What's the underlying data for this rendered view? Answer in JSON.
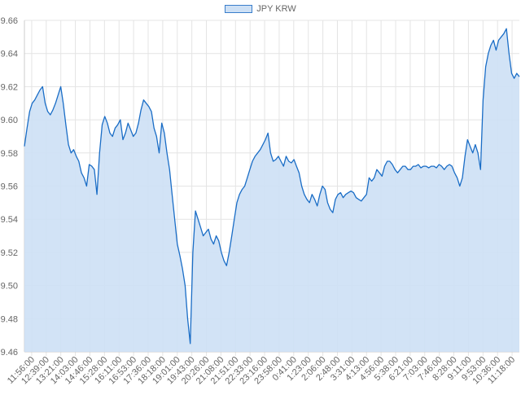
{
  "chart_data": {
    "type": "area",
    "title": "",
    "xlabel": "",
    "ylabel": "",
    "legend": {
      "position": "top-center",
      "entries": [
        "JPY KRW"
      ]
    },
    "grid": true,
    "colors": {
      "line": "#1a6dc6",
      "fill": "#cde0f5",
      "grid": "#e4e4e4",
      "tick_text": "#666666"
    },
    "ylim": [
      9.46,
      9.66
    ],
    "y_ticks": [
      "9.46",
      "9.48",
      "9.50",
      "9.52",
      "9.54",
      "9.56",
      "9.58",
      "9.60",
      "9.62",
      "9.64",
      "9.66"
    ],
    "x_tick_labels": [
      "11:56:00",
      "12:39:00",
      "13:21:00",
      "14:03:00",
      "14:46:00",
      "15:28:00",
      "16:11:00",
      "16:53:00",
      "17:36:00",
      "18:18:00",
      "19:01:00",
      "19:43:00",
      "20:26:00",
      "21:08:00",
      "21:51:00",
      "22:33:00",
      "23:16:00",
      "23:58:00",
      "0:41:00",
      "1:23:00",
      "2:06:00",
      "2:48:00",
      "3:31:00",
      "4:13:00",
      "4:56:00",
      "5:38:00",
      "6:21:00",
      "7:03:00",
      "7:46:00",
      "8:28:00",
      "9:11:00",
      "9:53:00",
      "10:36:00",
      "11:18:00"
    ],
    "series": [
      {
        "name": "JPY KRW",
        "values": [
          9.584,
          9.595,
          9.605,
          9.61,
          9.612,
          9.615,
          9.618,
          9.62,
          9.61,
          9.605,
          9.603,
          9.606,
          9.61,
          9.615,
          9.62,
          9.61,
          9.597,
          9.585,
          9.58,
          9.582,
          9.578,
          9.575,
          9.568,
          9.565,
          9.56,
          9.573,
          9.572,
          9.57,
          9.555,
          9.58,
          9.597,
          9.602,
          9.598,
          9.592,
          9.59,
          9.595,
          9.597,
          9.6,
          9.588,
          9.592,
          9.598,
          9.594,
          9.59,
          9.592,
          9.598,
          9.606,
          9.612,
          9.61,
          9.608,
          9.605,
          9.595,
          9.59,
          9.58,
          9.598,
          9.592,
          9.58,
          9.57,
          9.555,
          9.54,
          9.525,
          9.518,
          9.51,
          9.5,
          9.48,
          9.465,
          9.52,
          9.545,
          9.54,
          9.535,
          9.53,
          9.532,
          9.534,
          9.528,
          9.525,
          9.53,
          9.527,
          9.52,
          9.515,
          9.512,
          9.52,
          9.53,
          9.54,
          9.55,
          9.555,
          9.558,
          9.56,
          9.565,
          9.57,
          9.575,
          9.578,
          9.58,
          9.582,
          9.585,
          9.588,
          9.592,
          9.58,
          9.575,
          9.576,
          9.578,
          9.575,
          9.572,
          9.578,
          9.575,
          9.574,
          9.576,
          9.572,
          9.568,
          9.56,
          9.555,
          9.552,
          9.55,
          9.555,
          9.552,
          9.548,
          9.555,
          9.56,
          9.558,
          9.55,
          9.546,
          9.544,
          9.552,
          9.555,
          9.556,
          9.553,
          9.555,
          9.556,
          9.557,
          9.556,
          9.553,
          9.552,
          9.551,
          9.553,
          9.555,
          9.565,
          9.563,
          9.565,
          9.57,
          9.568,
          9.566,
          9.572,
          9.575,
          9.575,
          9.573,
          9.57,
          9.568,
          9.57,
          9.572,
          9.572,
          9.57,
          9.57,
          9.572,
          9.572,
          9.573,
          9.571,
          9.572,
          9.572,
          9.571,
          9.572,
          9.572,
          9.571,
          9.573,
          9.572,
          9.57,
          9.572,
          9.573,
          9.572,
          9.568,
          9.565,
          9.56,
          9.565,
          9.578,
          9.588,
          9.584,
          9.58,
          9.585,
          9.58,
          9.57,
          9.612,
          9.632,
          9.64,
          9.645,
          9.648,
          9.642,
          9.648,
          9.65,
          9.652,
          9.655,
          9.64,
          9.628,
          9.625,
          9.628,
          9.626
        ]
      }
    ]
  }
}
